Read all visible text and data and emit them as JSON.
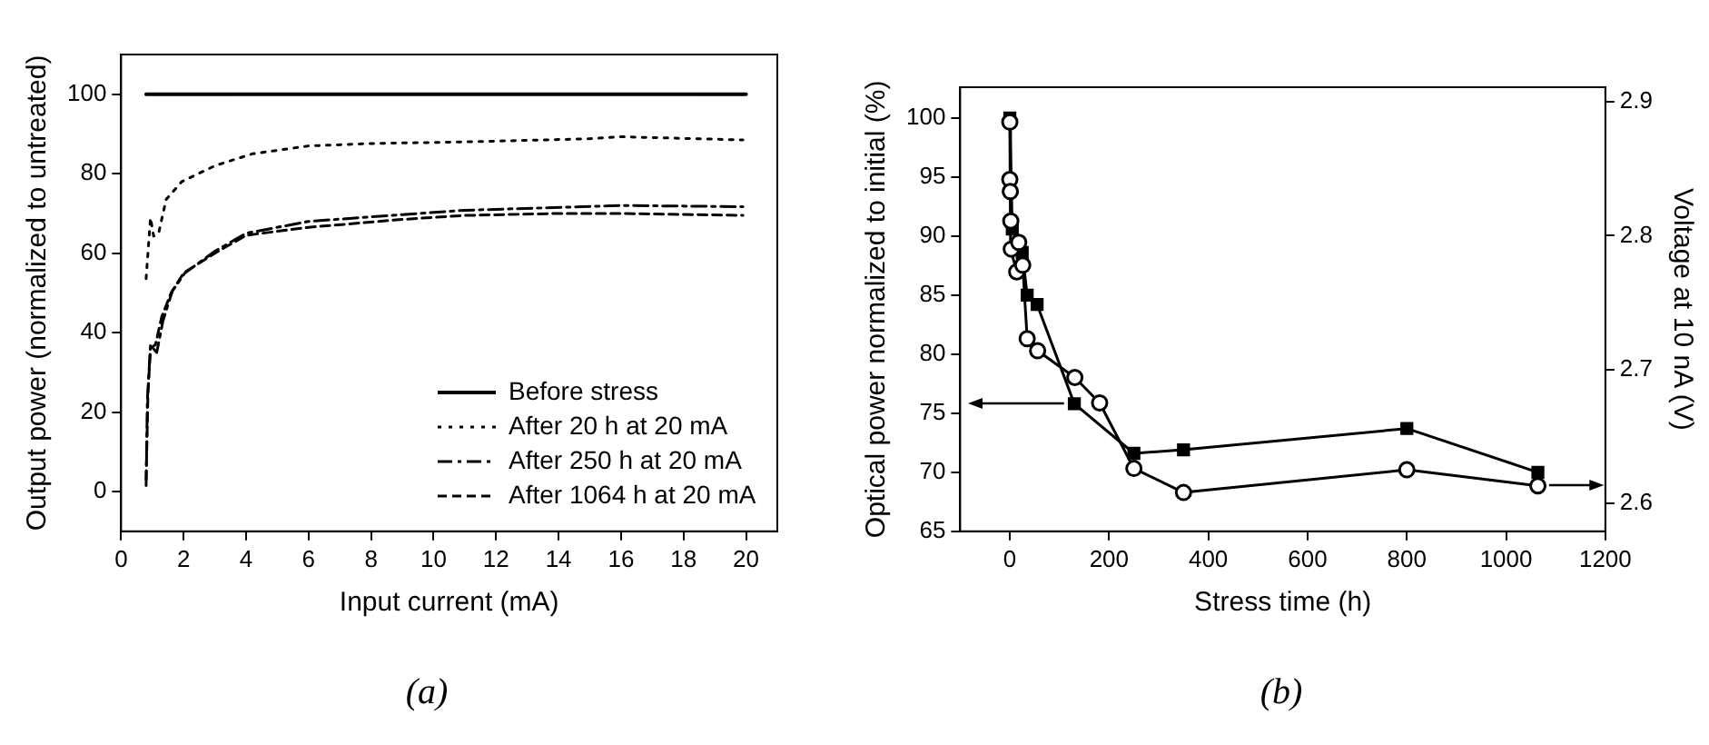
{
  "chart_data": [
    {
      "type": "line",
      "xlabel": "Input current (mA)",
      "ylabel": "Output power (normalized to untreated)",
      "annotations": [
        "(a)"
      ],
      "xlim": [
        0,
        21
      ],
      "xticks": [
        0,
        2,
        4,
        6,
        8,
        10,
        12,
        14,
        16,
        18,
        20
      ],
      "ylim": [
        -10,
        110
      ],
      "yticks": [
        0,
        20,
        40,
        60,
        80,
        100
      ],
      "grid": false,
      "legend": "bottom right",
      "marker": "none",
      "series": [
        {
          "name": "Before stress",
          "color": "#000000",
          "line_style": "solid",
          "x": [
            0.8,
            20
          ],
          "values": [
            100,
            100
          ]
        },
        {
          "name": "After 20 h at 20 mA",
          "color": "#000000",
          "line_style": "dotted",
          "x": [
            0.8,
            0.94,
            1.04,
            1.2,
            1.44,
            1.94,
            3.0,
            4.2,
            6.0,
            8.0,
            11,
            15,
            16,
            19.9
          ],
          "values": [
            53.6,
            68.9,
            64.3,
            65,
            73.5,
            78,
            82,
            85,
            87,
            87.6,
            88,
            88.8,
            89.3,
            88.5
          ]
        },
        {
          "name": "After 250 h at 20 mA",
          "color": "#000000",
          "line_style": "dashdot",
          "x": [
            0.8,
            0.84,
            0.94,
            1.14,
            1.34,
            1.64,
            2.04,
            3.0,
            4.0,
            6.0,
            9.0,
            11,
            16,
            19.9
          ],
          "values": [
            1.5,
            23,
            36.8,
            35,
            43,
            50.5,
            55,
            60.5,
            65,
            68,
            69.7,
            70.8,
            72,
            71.7
          ]
        },
        {
          "name": "After 1064 h at 20 mA",
          "color": "#000000",
          "line_style": "dashed",
          "x": [
            0.8,
            0.86,
            0.94,
            1.1,
            1.3,
            1.6,
            2.0,
            3.0,
            4.0,
            6.0,
            9.0,
            11,
            14,
            16,
            19.9
          ],
          "values": [
            3,
            25,
            36,
            37,
            44,
            50,
            55,
            60,
            64.5,
            66.5,
            68.5,
            69.5,
            70,
            70,
            69.5
          ]
        }
      ]
    },
    {
      "type": "line",
      "xlabel": "Stress time (h)",
      "ylabel": "Optical power normalized to initial (%)",
      "y2label": "Voltage at 10 nA (V)",
      "annotations": [
        "(b)"
      ],
      "xlim": [
        -100,
        1200
      ],
      "xticks": [
        0,
        200,
        400,
        600,
        800,
        1000,
        1200
      ],
      "ylim": [
        65,
        102.6
      ],
      "yticks": [
        65,
        70,
        75,
        80,
        85,
        90,
        95,
        100
      ],
      "y2lim": [
        2.579,
        2.911
      ],
      "y2ticks": [
        2.6,
        2.7,
        2.8,
        2.9
      ],
      "grid": false,
      "line_style": "solid",
      "series": [
        {
          "color": "#000000",
          "marker": "square",
          "x": [
            0,
            5,
            25,
            35,
            55,
            130,
            250,
            350,
            800,
            1064
          ],
          "values": [
            100,
            90.6,
            88.6,
            85.0,
            84.2,
            75.8,
            71.6,
            71.9,
            73.7,
            70.0
          ]
        },
        {
          "color": "#000000",
          "marker": "circle",
          "axis": "y2",
          "x": [
            0,
            0,
            1,
            2,
            3,
            14,
            18,
            26,
            35,
            56,
            131,
            181,
            250,
            350,
            800,
            1064
          ],
          "values": [
            2.885,
            2.842,
            2.833,
            2.811,
            2.79,
            2.773,
            2.795,
            2.778,
            2.723,
            2.714,
            2.694,
            2.675,
            2.626,
            2.608,
            2.625,
            2.613
          ]
        }
      ]
    }
  ]
}
